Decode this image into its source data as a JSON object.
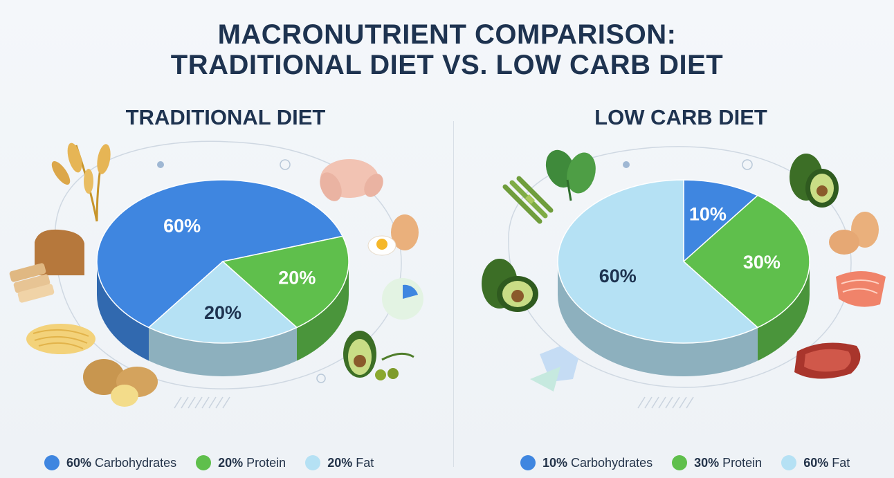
{
  "title_line1": "MACRONUTRIENT COMPARISON:",
  "title_line2": "TRADITIONAL DIET VS. LOW CARB DIET",
  "colors": {
    "carbohydrates": "#3f86e0",
    "protein": "#5fbf4c",
    "fat": "#b5e1f4"
  },
  "chart_data": [
    {
      "type": "pie",
      "title": "TRADITIONAL DIET",
      "slices": [
        {
          "name": "Carbohydrates",
          "value": 60,
          "label": "60%"
        },
        {
          "name": "Protein",
          "value": 20,
          "label": "20%"
        },
        {
          "name": "Fat",
          "value": 20,
          "label": "20%"
        }
      ],
      "legend": [
        {
          "pct": "60%",
          "name": "Carbohydrates"
        },
        {
          "pct": "20%",
          "name": "Protein"
        },
        {
          "pct": "20%",
          "name": "Fat"
        }
      ],
      "legend_position": "bottom",
      "food_icons": [
        "wheat-icon",
        "bread-icon",
        "pasta-icon",
        "potato-icon",
        "chicken-icon",
        "egg-icon",
        "avocado-olive-icon"
      ]
    },
    {
      "type": "pie",
      "title": "LOW CARB DIET",
      "slices": [
        {
          "name": "Carbohydrates",
          "value": 10,
          "label": "10%"
        },
        {
          "name": "Protein",
          "value": 30,
          "label": "30%"
        },
        {
          "name": "Fat",
          "value": 60,
          "label": "60%"
        }
      ],
      "legend": [
        {
          "pct": "10%",
          "name": "Carbohydrates"
        },
        {
          "pct": "30%",
          "name": "Protein"
        },
        {
          "pct": "60%",
          "name": "Fat"
        }
      ],
      "legend_position": "bottom",
      "food_icons": [
        "asparagus-icon",
        "spinach-icon",
        "avocado-icon",
        "avocado-icon",
        "egg-icon",
        "salmon-icon",
        "steak-icon"
      ]
    }
  ]
}
